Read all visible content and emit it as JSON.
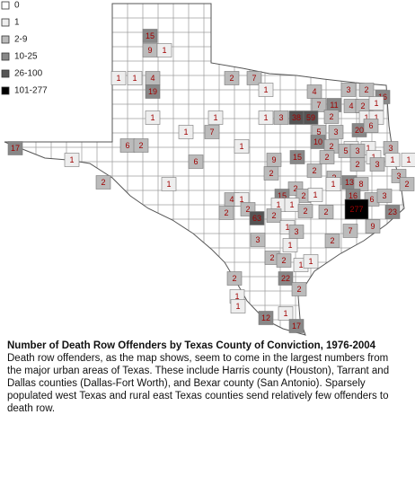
{
  "legend": [
    {
      "label": "0",
      "color": "#ffffff"
    },
    {
      "label": "1",
      "color": "#eeeeee"
    },
    {
      "label": "2-9",
      "color": "#bbbbbb"
    },
    {
      "label": "10-25",
      "color": "#888888"
    },
    {
      "label": "26-100",
      "color": "#555555"
    },
    {
      "label": "101-277",
      "color": "#000000"
    }
  ],
  "map_labels": {
    "values": [
      15,
      9,
      1,
      1,
      1,
      4,
      19,
      2,
      7,
      1,
      4,
      3,
      2,
      16,
      7,
      11,
      4,
      2,
      1,
      1,
      1,
      1,
      3,
      38,
      59,
      2,
      1,
      1,
      1,
      7,
      5,
      3,
      20,
      6,
      17,
      6,
      2,
      1,
      10,
      2,
      1,
      1,
      3,
      1,
      6,
      9,
      15,
      2,
      5,
      3,
      1,
      2,
      1,
      2,
      2,
      3,
      2,
      3,
      1,
      1,
      2,
      1,
      13,
      8,
      3,
      2,
      15,
      2,
      1,
      16,
      6,
      3,
      4,
      1,
      2,
      1,
      1,
      277,
      23,
      2,
      63,
      2,
      2,
      2,
      1,
      3,
      3,
      1,
      2,
      7,
      9,
      2,
      2,
      1,
      1,
      2,
      22,
      2,
      1,
      1,
      12,
      1,
      17
    ]
  },
  "caption": {
    "title": "Number of Death Row Offenders by Texas County of Conviction, 1976-2004",
    "text": "Death row offenders, as the map shows, seem to come in the largest numbers from the major urban areas of Texas. These include Harris county (Houston), Tarrant and Dallas counties (Dallas-Fort Worth), and Bexar county (San Antonio). Sparsely populated west Texas and rural east Texas counties send relatively few offenders to death row."
  }
}
